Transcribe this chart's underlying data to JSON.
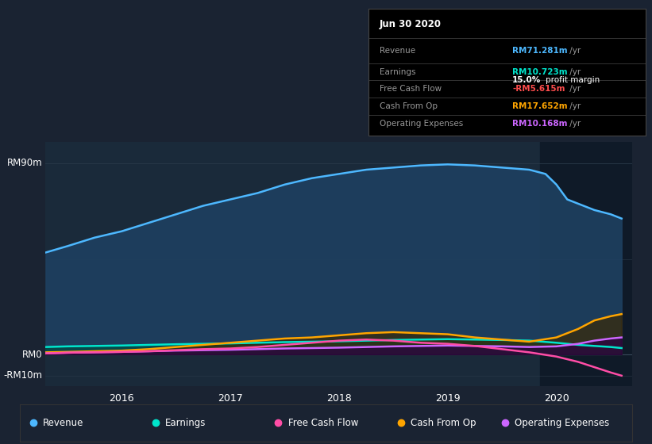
{
  "bg_color": "#1a2332",
  "plot_bg_color": "#1a2a3a",
  "title_date": "Jun 30 2020",
  "info_box": {
    "Revenue": {
      "value": "RM71.281m",
      "color": "#4db8ff"
    },
    "Earnings": {
      "value": "RM10.723m",
      "color": "#00e5cc"
    },
    "profit_margin": "15.0%",
    "Free Cash Flow": {
      "value": "-RM5.615m",
      "color": "#ff4d4d"
    },
    "Cash From Op": {
      "value": "RM17.652m",
      "color": "#ffa500"
    },
    "Operating Expenses": {
      "value": "RM10.168m",
      "color": "#cc66ff"
    }
  },
  "ylim": [
    -15,
    100
  ],
  "xlim": [
    2015.3,
    2020.7
  ],
  "xtick_labels": [
    "2016",
    "2017",
    "2018",
    "2019",
    "2020"
  ],
  "xtick_positions": [
    2016,
    2017,
    2018,
    2019,
    2020
  ],
  "series": {
    "Revenue": {
      "color": "#4db8ff",
      "fill_color": "#1e4060",
      "x": [
        2015.3,
        2015.5,
        2015.75,
        2016.0,
        2016.25,
        2016.5,
        2016.75,
        2017.0,
        2017.25,
        2017.5,
        2017.75,
        2018.0,
        2018.25,
        2018.5,
        2018.75,
        2019.0,
        2019.25,
        2019.5,
        2019.75,
        2019.9,
        2020.0,
        2020.1,
        2020.2,
        2020.35,
        2020.5,
        2020.6
      ],
      "y": [
        48,
        51,
        55,
        58,
        62,
        66,
        70,
        73,
        76,
        80,
        83,
        85,
        87,
        88,
        89,
        89.5,
        89,
        88,
        87,
        85,
        80,
        73,
        71,
        68,
        66,
        64
      ]
    },
    "Earnings": {
      "color": "#00e5cc",
      "fill_color": "#004d44",
      "x": [
        2015.3,
        2015.5,
        2015.75,
        2016.0,
        2016.25,
        2016.5,
        2016.75,
        2017.0,
        2017.25,
        2017.5,
        2017.75,
        2018.0,
        2018.25,
        2018.5,
        2018.75,
        2019.0,
        2019.25,
        2019.5,
        2019.75,
        2020.0,
        2020.2,
        2020.35,
        2020.5,
        2020.6
      ],
      "y": [
        3.5,
        3.8,
        4.0,
        4.2,
        4.5,
        4.8,
        5.0,
        5.2,
        5.5,
        5.8,
        6.0,
        6.2,
        6.5,
        6.8,
        7.0,
        7.2,
        7.0,
        6.8,
        6.5,
        5.5,
        4.5,
        4.0,
        3.5,
        3.0
      ]
    },
    "Free Cash Flow": {
      "color": "#ff4da6",
      "x": [
        2015.3,
        2015.5,
        2015.75,
        2016.0,
        2016.25,
        2016.5,
        2016.75,
        2017.0,
        2017.25,
        2017.5,
        2017.75,
        2018.0,
        2018.25,
        2018.5,
        2018.75,
        2019.0,
        2019.25,
        2019.5,
        2019.75,
        2020.0,
        2020.2,
        2020.35,
        2020.5,
        2020.6
      ],
      "y": [
        0.5,
        0.8,
        1.0,
        1.2,
        1.5,
        2.0,
        2.5,
        2.8,
        3.5,
        4.5,
        5.5,
        6.5,
        7.0,
        6.5,
        5.5,
        5.0,
        4.0,
        2.5,
        1.0,
        -1.0,
        -3.5,
        -6.0,
        -8.5,
        -10.0
      ]
    },
    "Cash From Op": {
      "color": "#ffa500",
      "fill_color": "#3d2800",
      "x": [
        2015.3,
        2015.5,
        2015.75,
        2016.0,
        2016.25,
        2016.5,
        2016.75,
        2017.0,
        2017.25,
        2017.5,
        2017.75,
        2018.0,
        2018.25,
        2018.5,
        2018.75,
        2019.0,
        2019.25,
        2019.5,
        2019.75,
        2020.0,
        2020.2,
        2020.35,
        2020.5,
        2020.6
      ],
      "y": [
        1.0,
        1.2,
        1.5,
        1.8,
        2.5,
        3.5,
        4.5,
        5.5,
        6.5,
        7.5,
        8.0,
        9.0,
        10.0,
        10.5,
        10.0,
        9.5,
        8.0,
        7.0,
        6.0,
        8.0,
        12.0,
        16.0,
        18.0,
        19.0
      ]
    },
    "Operating Expenses": {
      "color": "#cc66ff",
      "fill_color": "#2a0044",
      "x": [
        2015.3,
        2015.5,
        2015.75,
        2016.0,
        2016.25,
        2016.5,
        2016.75,
        2017.0,
        2017.25,
        2017.5,
        2017.75,
        2018.0,
        2018.25,
        2018.5,
        2018.75,
        2019.0,
        2019.25,
        2019.5,
        2019.75,
        2020.0,
        2020.2,
        2020.35,
        2020.5,
        2020.6
      ],
      "y": [
        0.5,
        0.8,
        1.0,
        1.2,
        1.5,
        1.8,
        2.0,
        2.2,
        2.5,
        2.8,
        3.0,
        3.2,
        3.5,
        3.8,
        4.0,
        4.2,
        4.0,
        3.8,
        3.5,
        3.8,
        5.0,
        6.5,
        7.5,
        8.0
      ]
    }
  },
  "legend_items": [
    {
      "label": "Revenue",
      "color": "#4db8ff"
    },
    {
      "label": "Earnings",
      "color": "#00e5cc"
    },
    {
      "label": "Free Cash Flow",
      "color": "#ff4da6"
    },
    {
      "label": "Cash From Op",
      "color": "#ffa500"
    },
    {
      "label": "Operating Expenses",
      "color": "#cc66ff"
    }
  ],
  "shaded_region_x": 2019.85,
  "shaded_region_color": "#0f1a28"
}
